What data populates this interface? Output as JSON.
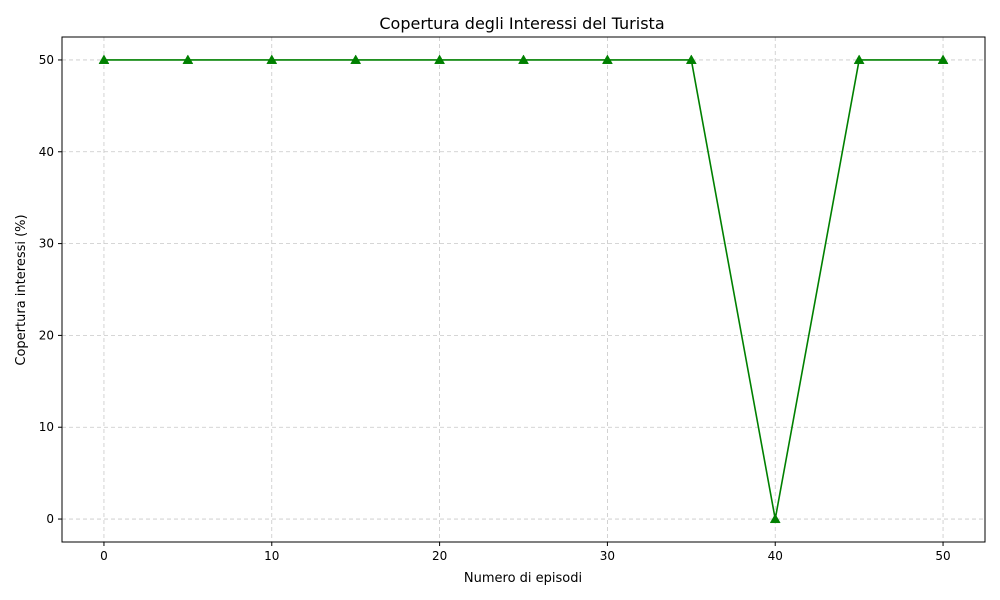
{
  "chart_data": {
    "type": "line",
    "title": "Copertura degli Interessi del Turista",
    "xlabel": "Numero di episodi",
    "ylabel": "Copertura interessi (%)",
    "x": [
      0,
      5,
      10,
      15,
      20,
      25,
      30,
      35,
      40,
      45,
      50
    ],
    "series": [
      {
        "values": [
          50,
          50,
          50,
          50,
          50,
          50,
          50,
          50,
          0,
          50,
          50
        ],
        "color": "#008000",
        "marker": "triangle-up"
      }
    ],
    "xlim": [
      -2.5,
      52.5
    ],
    "ylim": [
      -2.5,
      52.5
    ],
    "xticks": [
      "0",
      "10",
      "20",
      "30",
      "40",
      "50"
    ],
    "yticks": [
      "0",
      "10",
      "20",
      "30",
      "40",
      "50"
    ],
    "grid": true
  }
}
